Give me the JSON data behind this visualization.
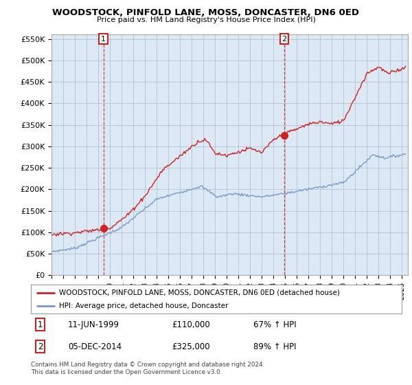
{
  "title": "WOODSTOCK, PINFOLD LANE, MOSS, DONCASTER, DN6 0ED",
  "subtitle": "Price paid vs. HM Land Registry's House Price Index (HPI)",
  "ylim": [
    0,
    560000
  ],
  "yticks": [
    0,
    50000,
    100000,
    150000,
    200000,
    250000,
    300000,
    350000,
    400000,
    450000,
    500000,
    550000
  ],
  "ytick_labels": [
    "£0",
    "£50K",
    "£100K",
    "£150K",
    "£200K",
    "£250K",
    "£300K",
    "£350K",
    "£400K",
    "£450K",
    "£500K",
    "£550K"
  ],
  "xlim_start": 1995.0,
  "xlim_end": 2025.5,
  "sale1_x": 1999.44,
  "sale1_y": 110000,
  "sale1_label": "1",
  "sale1_date": "11-JUN-1999",
  "sale1_price": "£110,000",
  "sale1_hpi": "67% ↑ HPI",
  "sale2_x": 2014.92,
  "sale2_y": 325000,
  "sale2_label": "2",
  "sale2_date": "05-DEC-2014",
  "sale2_price": "£325,000",
  "sale2_hpi": "89% ↑ HPI",
  "legend_line1": "WOODSTOCK, PINFOLD LANE, MOSS, DONCASTER, DN6 0ED (detached house)",
  "legend_line2": "HPI: Average price, detached house, Doncaster",
  "footer": "Contains HM Land Registry data © Crown copyright and database right 2024.\nThis data is licensed under the Open Government Licence v3.0.",
  "red_color": "#cc2222",
  "blue_color": "#7799cc",
  "plot_bg_color": "#dde8f5",
  "background_color": "#ffffff",
  "grid_color": "#aabbcc"
}
